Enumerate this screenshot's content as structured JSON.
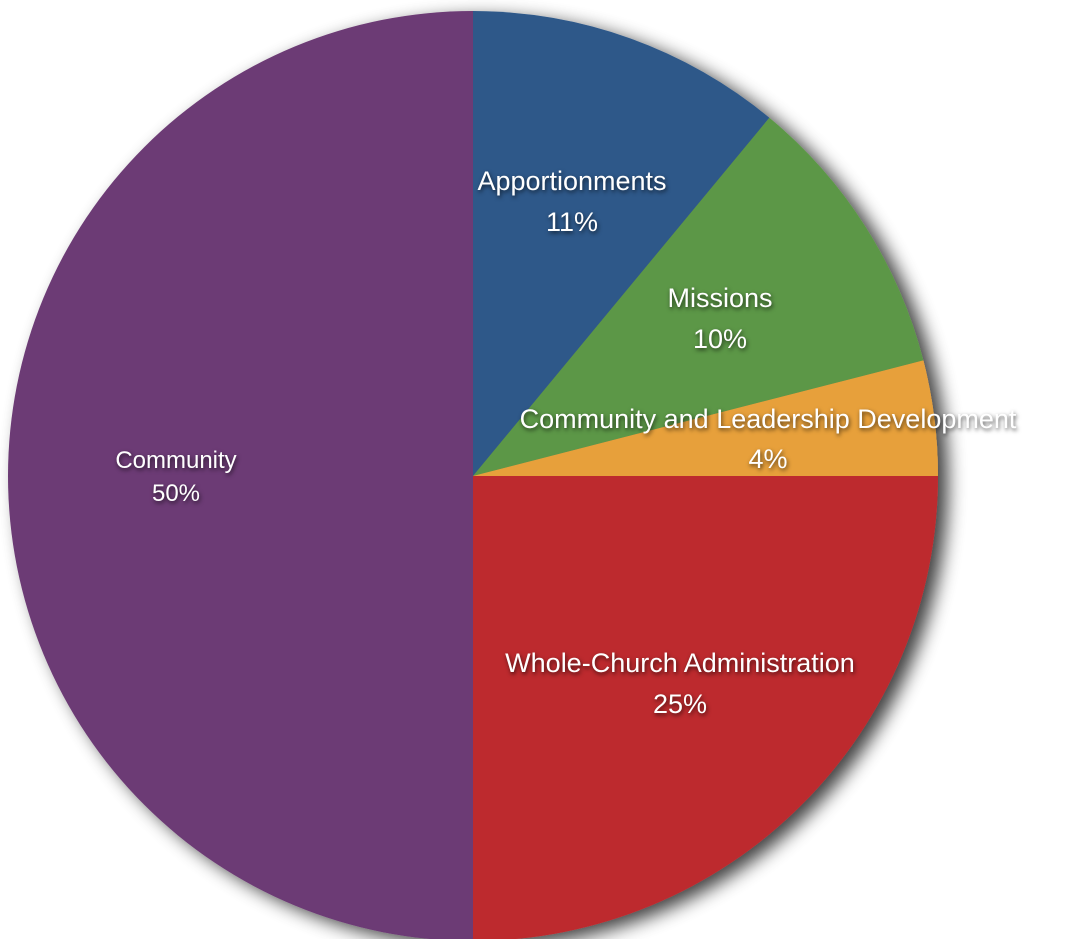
{
  "chart_data": {
    "type": "pie",
    "title": "",
    "start_angle_deg": 0,
    "direction": "clockwise",
    "slices": [
      {
        "label": "Apportionments",
        "value": 11,
        "value_label": "11%",
        "color": "#2e5889"
      },
      {
        "label": "Missions",
        "value": 10,
        "value_label": "10%",
        "color": "#5c9746"
      },
      {
        "label": "Community and Leadership Development",
        "value": 4,
        "value_label": "4%",
        "color": "#e7a03b"
      },
      {
        "label": "Whole-Church Administration",
        "value": 25,
        "value_label": "25%",
        "color": "#bd2a2e"
      },
      {
        "label": "Community",
        "value": 50,
        "value_label": "50%",
        "color": "#6c3b74"
      }
    ]
  }
}
